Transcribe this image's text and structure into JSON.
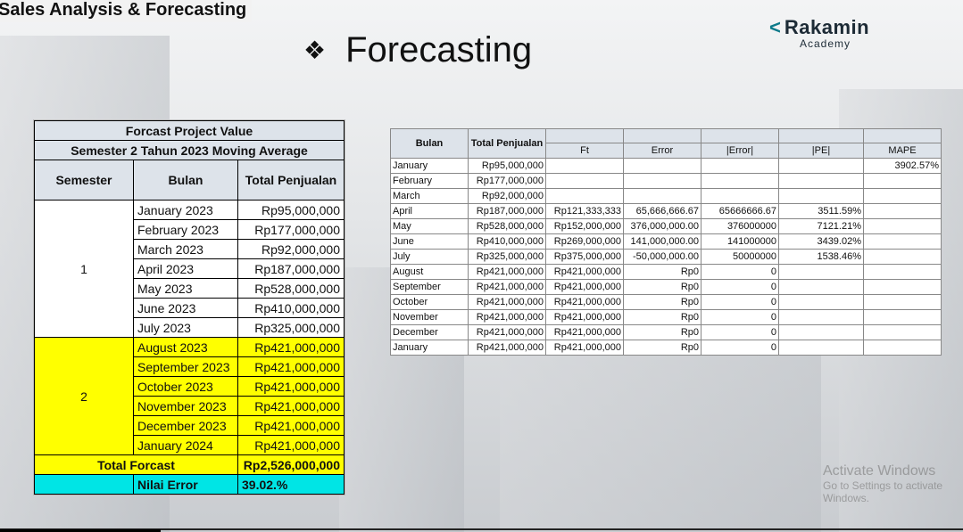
{
  "header": {
    "title": "Sales Analysis & Forecasting"
  },
  "slide": {
    "diamond": "❖",
    "title": "Forecasting"
  },
  "logo": {
    "mark": "<",
    "name": "Rakamin",
    "sub": "Academy"
  },
  "left_table": {
    "title1": "Forcast Project Value",
    "title2": "Semester 2 Tahun 2023 Moving Average",
    "col_semester": "Semester",
    "col_bulan": "Bulan",
    "col_total": "Total Penjualan",
    "sem1_label": "1",
    "sem2_label": "2",
    "rows": [
      {
        "bulan": "January 2023",
        "total": "Rp95,000,000"
      },
      {
        "bulan": "February 2023",
        "total": "Rp177,000,000"
      },
      {
        "bulan": "March 2023",
        "total": "Rp92,000,000"
      },
      {
        "bulan": "April 2023",
        "total": "Rp187,000,000"
      },
      {
        "bulan": "May 2023",
        "total": "Rp528,000,000"
      },
      {
        "bulan": "June 2023",
        "total": "Rp410,000,000"
      },
      {
        "bulan": "July 2023",
        "total": "Rp325,000,000"
      },
      {
        "bulan": "August 2023",
        "total": "Rp421,000,000"
      },
      {
        "bulan": "September 2023",
        "total": "Rp421,000,000"
      },
      {
        "bulan": "October 2023",
        "total": "Rp421,000,000"
      },
      {
        "bulan": "November 2023",
        "total": "Rp421,000,000"
      },
      {
        "bulan": "December 2023",
        "total": "Rp421,000,000"
      },
      {
        "bulan": "January 2024",
        "total": "Rp421,000,000"
      }
    ],
    "total_label": "Total Forcast",
    "total_value": "Rp2,526,000,000",
    "error_label": "Nilai Error",
    "error_value": "39.02.%"
  },
  "right_table": {
    "headers": [
      "Bulan",
      "Total Penjualan",
      "Ft",
      "Error",
      "|Error|",
      "|PE|",
      "MAPE"
    ],
    "rows": [
      [
        "January",
        "Rp95,000,000",
        "",
        "",
        "",
        "",
        "3902.57%"
      ],
      [
        "February",
        "Rp177,000,000",
        "",
        "",
        "",
        "",
        ""
      ],
      [
        "March",
        "Rp92,000,000",
        "",
        "",
        "",
        "",
        ""
      ],
      [
        "April",
        "Rp187,000,000",
        "Rp121,333,333",
        "65,666,666.67",
        "65666666.67",
        "3511.59%",
        ""
      ],
      [
        "May",
        "Rp528,000,000",
        "Rp152,000,000",
        "376,000,000.00",
        "376000000",
        "7121.21%",
        ""
      ],
      [
        "June",
        "Rp410,000,000",
        "Rp269,000,000",
        "141,000,000.00",
        "141000000",
        "3439.02%",
        ""
      ],
      [
        "July",
        "Rp325,000,000",
        "Rp375,000,000",
        "-50,000,000.00",
        "50000000",
        "1538.46%",
        ""
      ],
      [
        "August",
        "Rp421,000,000",
        "Rp421,000,000",
        "Rp0",
        "0",
        "",
        ""
      ],
      [
        "September",
        "Rp421,000,000",
        "Rp421,000,000",
        "Rp0",
        "0",
        "",
        ""
      ],
      [
        "October",
        "Rp421,000,000",
        "Rp421,000,000",
        "Rp0",
        "0",
        "",
        ""
      ],
      [
        "November",
        "Rp421,000,000",
        "Rp421,000,000",
        "Rp0",
        "0",
        "",
        ""
      ],
      [
        "December",
        "Rp421,000,000",
        "Rp421,000,000",
        "Rp0",
        "0",
        "",
        ""
      ],
      [
        "January",
        "Rp421,000,000",
        "Rp421,000,000",
        "Rp0",
        "0",
        "",
        ""
      ]
    ]
  },
  "watermark": {
    "line1": "Activate Windows",
    "line2": "Go to Settings to activate Windows."
  }
}
